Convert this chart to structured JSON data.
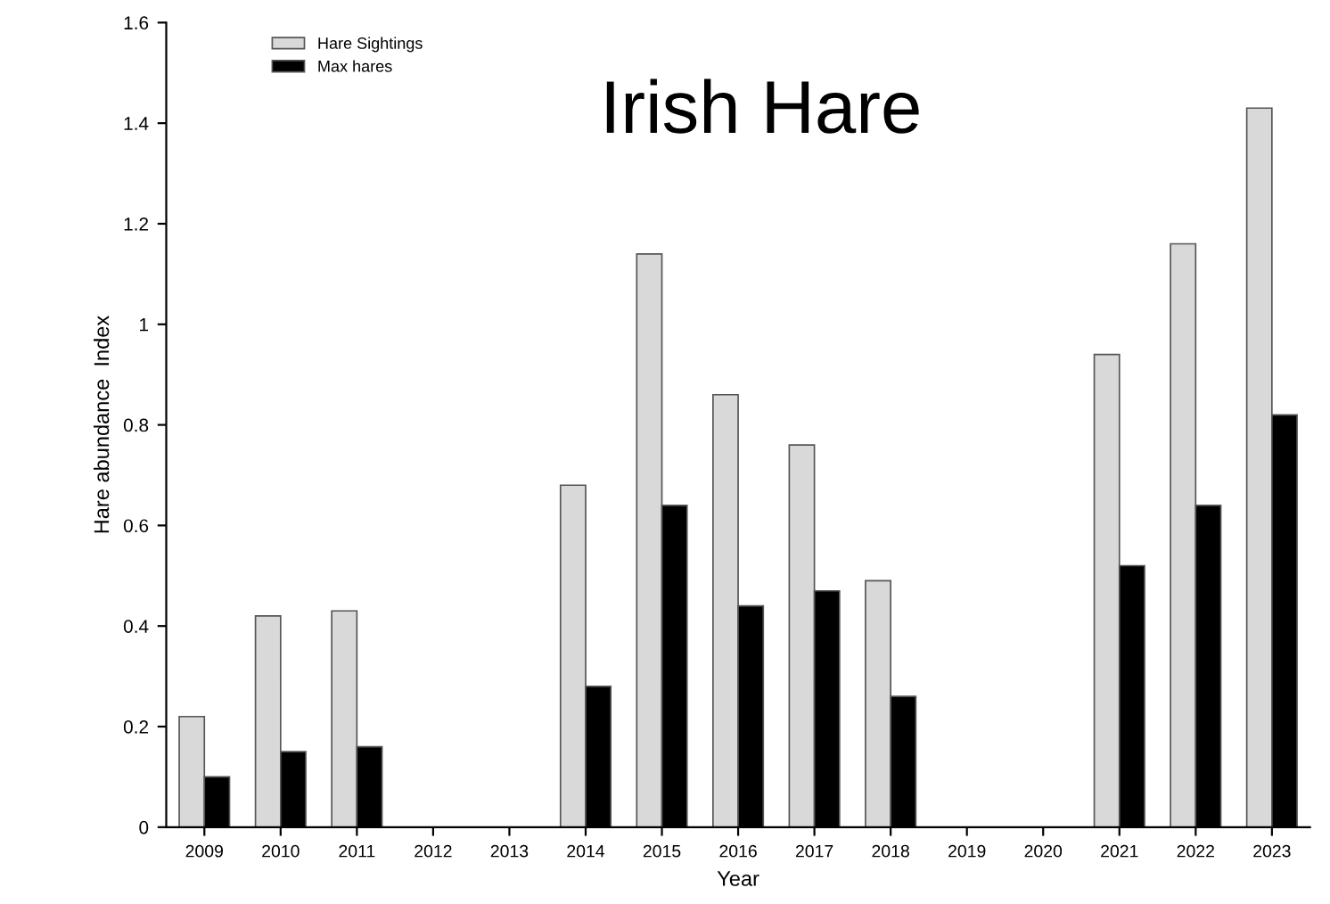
{
  "chart_data": {
    "type": "bar",
    "title": "Irish Hare",
    "xlabel": "Year",
    "ylabel": "Hare abundance  Index",
    "categories": [
      "2009",
      "2010",
      "2011",
      "2012",
      "2013",
      "2014",
      "2015",
      "2016",
      "2017",
      "2018",
      "2019",
      "2020",
      "2021",
      "2022",
      "2023"
    ],
    "series": [
      {
        "name": "Hare Sightings",
        "color": "#d9d9d9",
        "values": [
          0.22,
          0.42,
          0.43,
          null,
          null,
          0.68,
          1.14,
          0.86,
          0.76,
          0.49,
          null,
          null,
          0.94,
          1.16,
          1.43
        ]
      },
      {
        "name": "Max hares",
        "color": "#000000",
        "values": [
          0.1,
          0.15,
          0.16,
          null,
          null,
          0.28,
          0.64,
          0.44,
          0.47,
          0.26,
          null,
          null,
          0.52,
          0.64,
          0.82
        ]
      }
    ],
    "ylim": [
      0,
      1.6
    ],
    "yticks": [
      0,
      0.2,
      0.4,
      0.6,
      0.8,
      1,
      1.2,
      1.4,
      1.6
    ],
    "grid": false,
    "legend": "top left"
  }
}
